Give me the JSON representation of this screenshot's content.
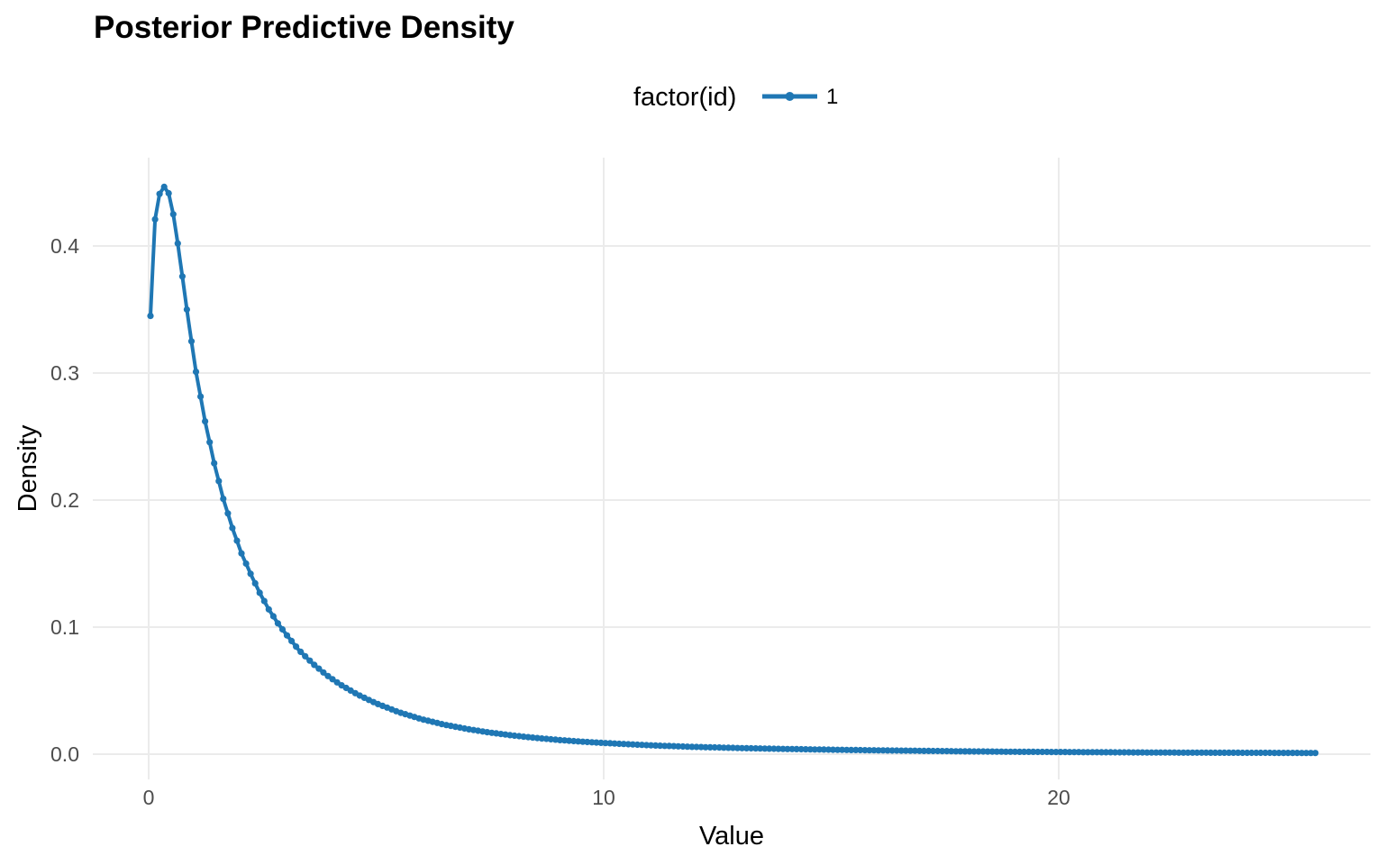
{
  "chart_data": {
    "type": "line",
    "title": "Posterior Predictive Density",
    "xlabel": "Value",
    "ylabel": "Density",
    "x_ticks": [
      {
        "label": "0",
        "value": 0
      },
      {
        "label": "10",
        "value": 10
      },
      {
        "label": "20",
        "value": 20
      }
    ],
    "y_ticks": [
      {
        "label": "0.0",
        "value": 0.0
      },
      {
        "label": "0.1",
        "value": 0.1
      },
      {
        "label": "0.2",
        "value": 0.2
      },
      {
        "label": "0.3",
        "value": 0.3
      },
      {
        "label": "0.4",
        "value": 0.4
      }
    ],
    "xlim": [
      -1.23,
      26.85
    ],
    "ylim": [
      -0.02,
      0.47
    ],
    "grid": "major-only",
    "legend": {
      "title": "factor(id)",
      "position": "top-center",
      "entries": [
        {
          "label": "1",
          "color": "#1f77b4",
          "key": "line-with-point"
        }
      ]
    },
    "colors": {
      "line": "#1f77b4",
      "grid": "#ebebeb",
      "tick_text": "#4d4d4d",
      "text": "#000000",
      "background": "#ffffff"
    },
    "marker_x_interval": 0.1,
    "marker_x_start": 0.04,
    "marker_x_end": 25.64,
    "series": [
      {
        "name": "1",
        "color": "#1f77b4",
        "style": "line-with-points",
        "points": [
          [
            0.04,
            0.345
          ],
          [
            0.14,
            0.421
          ],
          [
            0.24,
            0.441
          ],
          [
            0.34,
            0.4465
          ],
          [
            0.44,
            0.4415
          ],
          [
            0.54,
            0.425
          ],
          [
            0.64,
            0.402
          ],
          [
            0.74,
            0.376
          ],
          [
            0.84,
            0.35
          ],
          [
            0.94,
            0.325
          ],
          [
            1.04,
            0.301
          ],
          [
            1.24,
            0.262
          ],
          [
            1.44,
            0.229
          ],
          [
            1.64,
            0.201
          ],
          [
            1.84,
            0.178
          ],
          [
            2.04,
            0.158
          ],
          [
            2.24,
            0.142
          ],
          [
            2.44,
            0.127
          ],
          [
            2.64,
            0.114
          ],
          [
            2.84,
            0.103
          ],
          [
            3.04,
            0.0935
          ],
          [
            3.3,
            0.082
          ],
          [
            3.6,
            0.0715
          ],
          [
            3.9,
            0.0625
          ],
          [
            4.2,
            0.055
          ],
          [
            4.6,
            0.0468
          ],
          [
            5.0,
            0.04
          ],
          [
            5.5,
            0.033
          ],
          [
            6.0,
            0.0275
          ],
          [
            6.5,
            0.0232
          ],
          [
            7.0,
            0.0198
          ],
          [
            7.5,
            0.017
          ],
          [
            8.0,
            0.0147
          ],
          [
            8.5,
            0.0128
          ],
          [
            9.0,
            0.0112
          ],
          [
            9.5,
            0.0099
          ],
          [
            10.0,
            0.0088
          ],
          [
            11.0,
            0.007
          ],
          [
            12.0,
            0.0057
          ],
          [
            13.0,
            0.0048
          ],
          [
            14.0,
            0.0041
          ],
          [
            15.0,
            0.0035
          ],
          [
            16.0,
            0.003
          ],
          [
            17.0,
            0.0026
          ],
          [
            18.0,
            0.0022
          ],
          [
            19.0,
            0.0019
          ],
          [
            20.0,
            0.0017
          ],
          [
            21.0,
            0.0015
          ],
          [
            22.0,
            0.0013
          ],
          [
            23.0,
            0.0012
          ],
          [
            24.0,
            0.0011
          ],
          [
            25.0,
            0.001
          ],
          [
            25.64,
            0.0009
          ]
        ]
      }
    ]
  }
}
